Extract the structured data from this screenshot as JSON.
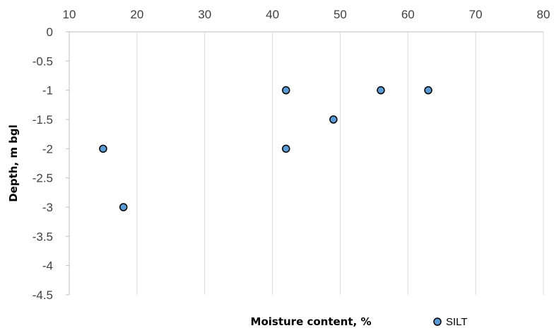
{
  "chart_data": {
    "type": "scatter",
    "xlabel": "Moisture content, %",
    "ylabel": "Depth, m bgl",
    "xlim": [
      10,
      80
    ],
    "ylim": [
      -4.5,
      0
    ],
    "x_ticks": [
      "10",
      "20",
      "30",
      "40",
      "50",
      "60",
      "70",
      "80"
    ],
    "y_ticks": [
      "0",
      "-0.5",
      "-1",
      "-1.5",
      "-2",
      "-2.5",
      "-3",
      "-3.5",
      "-4",
      "-4.5"
    ],
    "x_axis_position": "top",
    "grid": "vertical",
    "legend": "bottom-right",
    "series": [
      {
        "name": "SILT",
        "color": "#5b9bd5",
        "edge_color": "#000000",
        "points": [
          {
            "x": 15,
            "y": -2
          },
          {
            "x": 18,
            "y": -3
          },
          {
            "x": 42,
            "y": -1
          },
          {
            "x": 42,
            "y": -2
          },
          {
            "x": 49,
            "y": -1.5
          },
          {
            "x": 56,
            "y": -1
          },
          {
            "x": 63,
            "y": -1
          }
        ]
      }
    ]
  }
}
